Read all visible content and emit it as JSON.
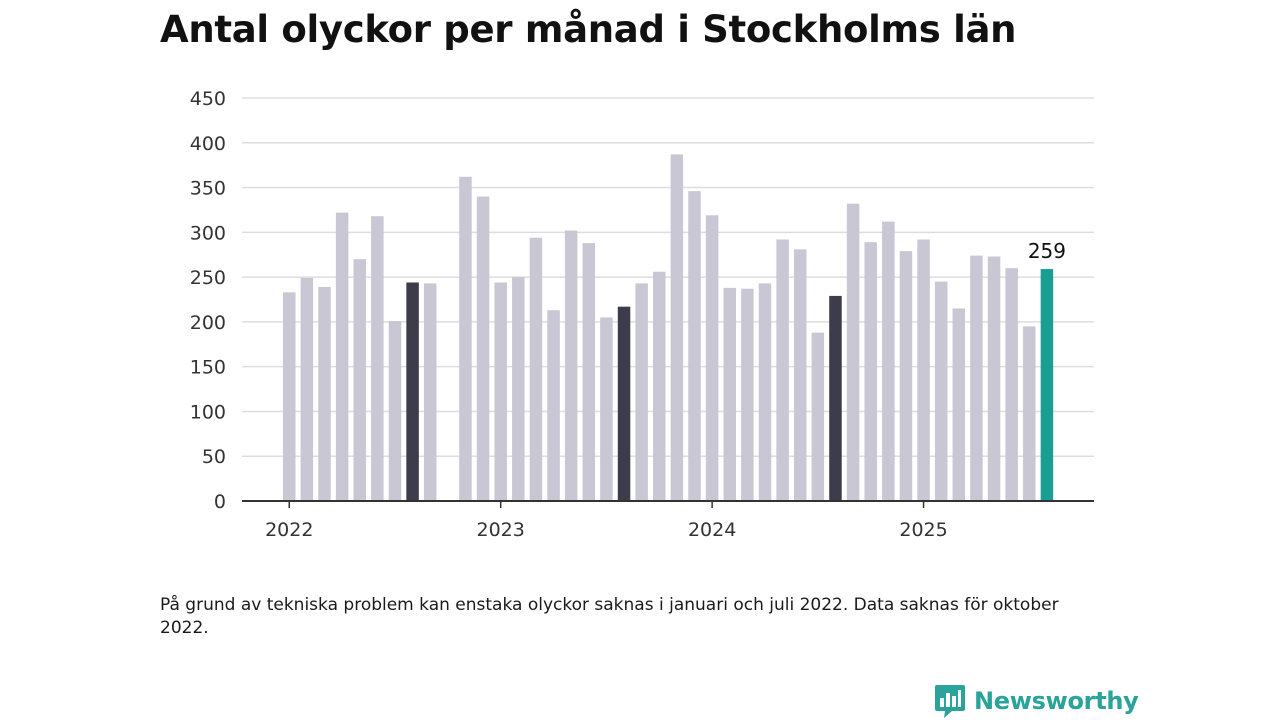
{
  "title": "Antal olyckor per månad i Stockholms län",
  "footnote": "På grund av tekniska problem kan enstaka olyckor saknas i januari och juli 2022. Data saknas för oktober 2022.",
  "brand": {
    "name": "Newsworthy",
    "icon": "newsworthy-logo-icon",
    "color": "#2aa39a"
  },
  "colors": {
    "default": "#c8c7d3",
    "july": "#3d3c4a",
    "latest": "#1a9e94",
    "grid": "#dddddd",
    "axis": "#333333"
  },
  "chart_data": {
    "type": "bar",
    "title": "Antal olyckor per månad i Stockholms län",
    "xlabel": "",
    "ylabel": "",
    "ylim": [
      0,
      450
    ],
    "yticks": [
      0,
      50,
      100,
      150,
      200,
      250,
      300,
      350,
      400,
      450
    ],
    "year_labels": [
      {
        "label": "2022",
        "index": 0
      },
      {
        "label": "2023",
        "index": 12
      },
      {
        "label": "2024",
        "index": 24
      },
      {
        "label": "2025",
        "index": 36
      }
    ],
    "grid": true,
    "categories": [
      "2022-01",
      "2022-02",
      "2022-03",
      "2022-04",
      "2022-05",
      "2022-06",
      "2022-07",
      "2022-08",
      "2022-09",
      "2022-10",
      "2022-11",
      "2022-12",
      "2023-01",
      "2023-02",
      "2023-03",
      "2023-04",
      "2023-05",
      "2023-06",
      "2023-07",
      "2023-08",
      "2023-09",
      "2023-10",
      "2023-11",
      "2023-12",
      "2024-01",
      "2024-02",
      "2024-03",
      "2024-04",
      "2024-05",
      "2024-06",
      "2024-07",
      "2024-08",
      "2024-09",
      "2024-10",
      "2024-11",
      "2024-12",
      "2025-01",
      "2025-02",
      "2025-03",
      "2025-04",
      "2025-05",
      "2025-06",
      "2025-07",
      "2025-08"
    ],
    "values": [
      233,
      249,
      239,
      322,
      270,
      318,
      201,
      244,
      243,
      null,
      362,
      340,
      244,
      250,
      294,
      213,
      302,
      288,
      205,
      217,
      243,
      256,
      387,
      346,
      319,
      238,
      237,
      243,
      292,
      281,
      188,
      229,
      332,
      289,
      312,
      279,
      292,
      245,
      215,
      274,
      273,
      260,
      195,
      259
    ],
    "highlight_dark": [
      "2022-08",
      "2023-08",
      "2024-08"
    ],
    "highlight_latest": "2025-08",
    "data_labels": [
      {
        "category": "2025-08",
        "text": "259"
      }
    ]
  }
}
